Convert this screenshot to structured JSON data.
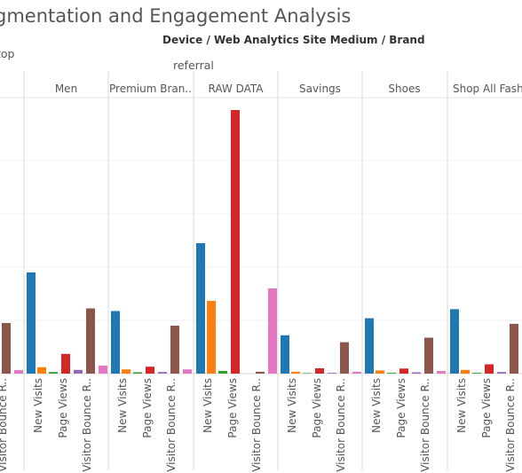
{
  "header": {
    "title": "gmentation and Engagement Analysis",
    "subtitle": "Device  /  Web Analytics Site Medium  /  Brand",
    "device_label": "top",
    "medium_label": "referral"
  },
  "chart_data": {
    "type": "bar",
    "title": "gmentation and Engagement Analysis",
    "brands": [
      "",
      "Men",
      "Premium Bran..",
      "RAW DATA",
      "Savings",
      "Shoes",
      "Shop All Fashi"
    ],
    "categories": [
      "New Visits",
      "Page Views",
      "Visitor Bounce R.."
    ],
    "metrics": [
      "New Visits",
      "New Visits (orange)",
      "New Visits (green)",
      "Page Views",
      "Page Views (purple)",
      "Visitor Bounce R..",
      "Visitor Bounce R.. (pink)"
    ],
    "series_colors": [
      "#1f77b4",
      "#ff7f0e",
      "#2ca02c",
      "#d62728",
      "#9467bd",
      "#8c564b",
      "#e377c2"
    ],
    "ylim": [
      0,
      100
    ],
    "grid": true,
    "groups": [
      {
        "brand": "",
        "values": [
          null,
          null,
          null,
          null,
          null,
          19,
          1.3
        ]
      },
      {
        "brand": "Men",
        "values": [
          38,
          2.4,
          0.6,
          7.4,
          1.4,
          24.5,
          3.0
        ]
      },
      {
        "brand": "Premium Bran..",
        "values": [
          23.5,
          1.6,
          0.5,
          2.6,
          0.6,
          18,
          1.6
        ]
      },
      {
        "brand": "RAW DATA",
        "values": [
          49,
          27.3,
          1.0,
          99,
          null,
          0.7,
          32
        ]
      },
      {
        "brand": "Savings",
        "values": [
          14.4,
          0.7,
          0.2,
          2.0,
          0.3,
          11.8,
          0.7
        ]
      },
      {
        "brand": "Shoes",
        "values": [
          20.8,
          1.2,
          0.3,
          1.9,
          0.5,
          13.5,
          1.0
        ]
      },
      {
        "brand": "Shop All Fashi",
        "values": [
          24.2,
          1.4,
          0.3,
          3.5,
          0.6,
          18.7,
          1.0
        ]
      }
    ]
  }
}
